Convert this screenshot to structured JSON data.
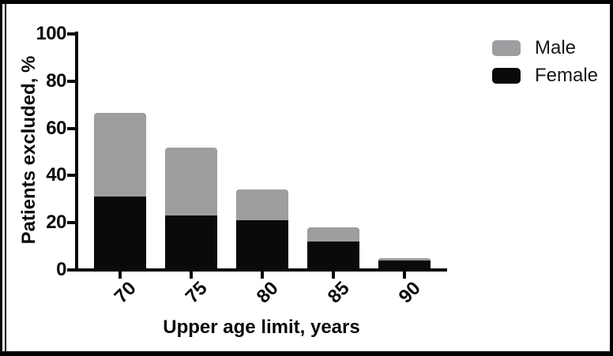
{
  "frame": {
    "border_color": "#000000",
    "background": "#ffffff"
  },
  "chart_data": {
    "type": "bar",
    "stacked": true,
    "title": "",
    "xlabel": "Upper age limit, years",
    "ylabel": "Patients excluded, %",
    "categories": [
      "70",
      "75",
      "80",
      "85",
      "90"
    ],
    "series": [
      {
        "name": "Female",
        "color": "#0a0a0a",
        "values": [
          31,
          23,
          21,
          12,
          4
        ]
      },
      {
        "name": "Male",
        "color": "#9e9ea1",
        "values": [
          35.5,
          29,
          13,
          6,
          1
        ]
      }
    ],
    "stack_totals": [
      66.5,
      52,
      34,
      18,
      5
    ],
    "ylim": [
      0,
      100
    ],
    "yticks": [
      0,
      20,
      40,
      60,
      80,
      100
    ],
    "grid": false,
    "legend": {
      "position": "top-right",
      "items": [
        {
          "label": "Male",
          "color": "#9e9ea1"
        },
        {
          "label": "Female",
          "color": "#0a0a0a"
        }
      ]
    }
  }
}
